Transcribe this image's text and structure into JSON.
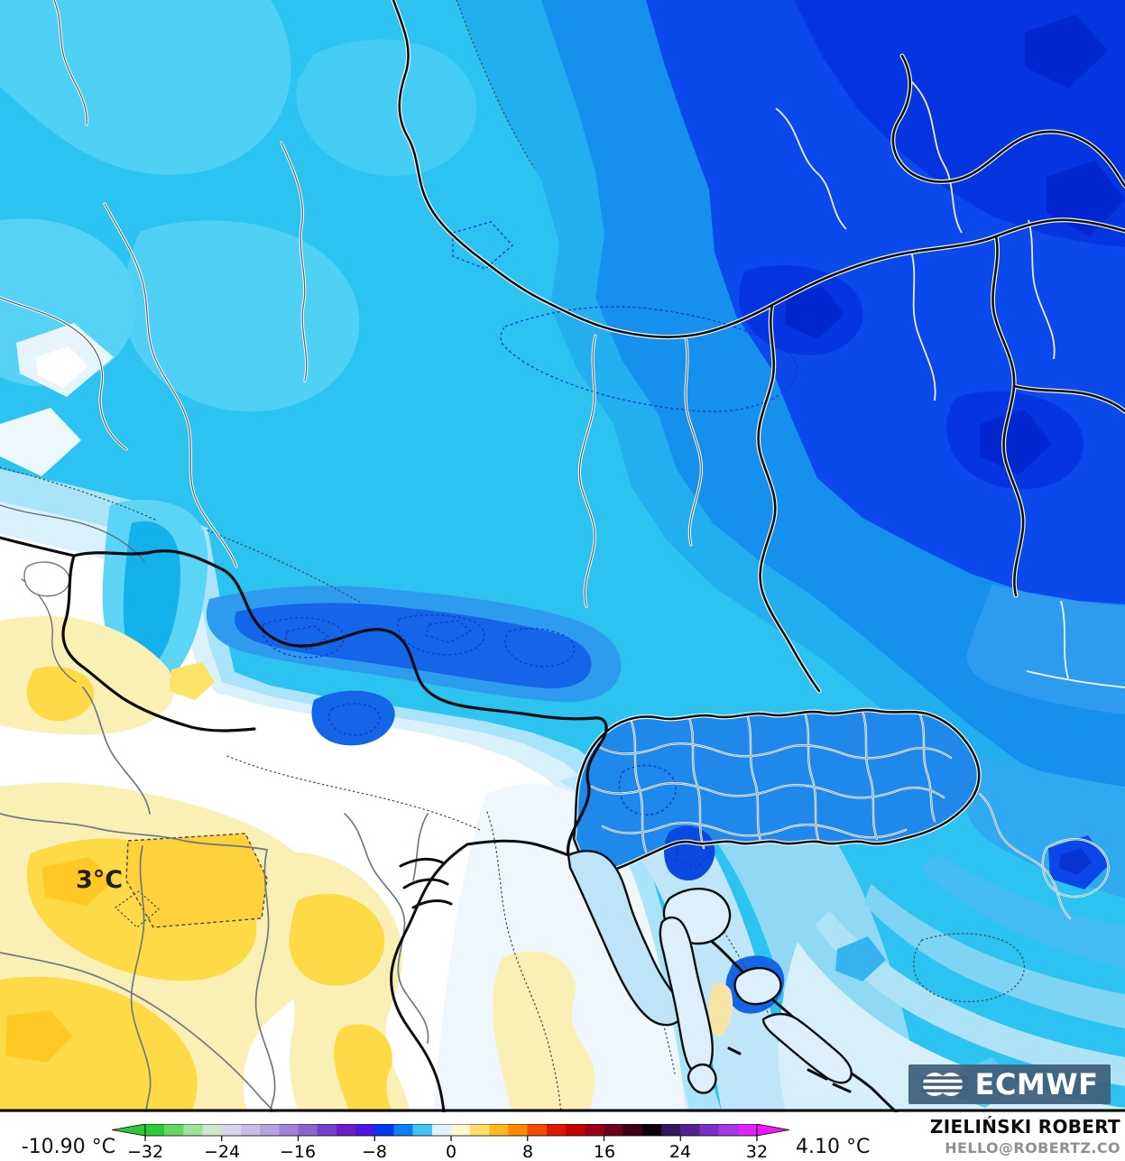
{
  "map": {
    "contour_label": "3°C"
  },
  "colorbar": {
    "min_label": "-10.90 °C",
    "max_label": "4.10 °C",
    "ticks": [
      "−32",
      "−24",
      "−16",
      "−8",
      "0",
      "8",
      "16",
      "24",
      "32"
    ],
    "cells": [
      "#2DC937",
      "#63D85F",
      "#9FE39B",
      "#CBE9CE",
      "#D8D7E9",
      "#C9BEE6",
      "#B5A2E0",
      "#A084D9",
      "#8A64D1",
      "#7440CB",
      "#6A1EC8",
      "#4E16E2",
      "#0536F2",
      "#0E7DF8",
      "#41C4F6",
      "#DFF4FC",
      "#FEF6CF",
      "#FFDE66",
      "#FFB81E",
      "#FF8A00",
      "#F64A00",
      "#E01800",
      "#C00400",
      "#9C0014",
      "#6E001C",
      "#3E0014",
      "#0A0008",
      "#33175C",
      "#512393",
      "#7B2FC5",
      "#A935E8",
      "#E022F8"
    ],
    "arrow_left_color": "#2DC937",
    "arrow_right_color": "#F414FC"
  },
  "overlay": {
    "logo_text": "ECMWF"
  },
  "attribution": {
    "name": "ZIELIŃSKI ROBERT",
    "email": "HELLO@ROBERTZ.CO"
  },
  "palette": {
    "cyan_base": "#2CC3F1",
    "sky_blue": "#23AEEF",
    "medium_blue": "#1590ED",
    "royal_blue": "#0B49EC",
    "deep_blue": "#0435E0",
    "darkest_blue": "#0226D0",
    "alps_core": "#0838D8",
    "slovenia_blue": "#1E88EB",
    "pale_blue": "#A9E4F8",
    "white_zone": "#FFFFFF",
    "pale_yellow": "#FAEFB5",
    "yellow": "#FFDA47",
    "deep_yellow": "#FFC825",
    "logo_bg": "#3E6078"
  }
}
